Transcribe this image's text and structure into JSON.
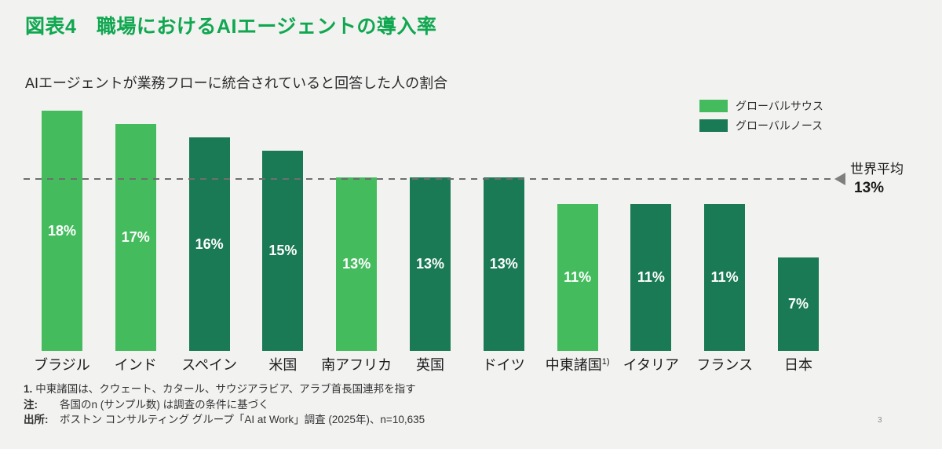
{
  "page": {
    "background_color": "#F2F2F1",
    "page_number": "3"
  },
  "title": {
    "text": "図表4　職場におけるAIエージェントの導入率",
    "color": "#10A750"
  },
  "subtitle": "AIエージェントが業務フローに統合されていると回答した人の割合",
  "legend": {
    "position": "top-right",
    "items": [
      {
        "label": "グローバルサウス",
        "color": "#44BC5E"
      },
      {
        "label": "グローバルノース",
        "color": "#1A7A55"
      }
    ]
  },
  "chart_data": {
    "type": "bar",
    "title": "職場におけるAIエージェントの導入率",
    "xlabel": "",
    "ylabel": "",
    "ylim": [
      0,
      20
    ],
    "grid": false,
    "legend_position": "top-right",
    "categories": [
      "ブラジル",
      "インド",
      "スペイン",
      "米国",
      "南アフリカ",
      "英国",
      "ドイツ",
      "中東諸国",
      "イタリア",
      "フランス",
      "日本"
    ],
    "values": [
      18,
      17,
      16,
      15,
      13,
      13,
      13,
      11,
      11,
      11,
      7
    ],
    "series": [
      {
        "name": "グローバルサウス",
        "color": "#44BC5E"
      },
      {
        "name": "グローバルノース",
        "color": "#1A7A55"
      }
    ],
    "bars": [
      {
        "category": "ブラジル",
        "sup": "",
        "value": 18,
        "label": "18%",
        "series": "グローバルサウス"
      },
      {
        "category": "インド",
        "sup": "",
        "value": 17,
        "label": "17%",
        "series": "グローバルサウス"
      },
      {
        "category": "スペイン",
        "sup": "",
        "value": 16,
        "label": "16%",
        "series": "グローバルノース"
      },
      {
        "category": "米国",
        "sup": "",
        "value": 15,
        "label": "15%",
        "series": "グローバルノース"
      },
      {
        "category": "南アフリカ",
        "sup": "",
        "value": 13,
        "label": "13%",
        "series": "グローバルサウス"
      },
      {
        "category": "英国",
        "sup": "",
        "value": 13,
        "label": "13%",
        "series": "グローバルノース"
      },
      {
        "category": "ドイツ",
        "sup": "",
        "value": 13,
        "label": "13%",
        "series": "グローバルノース"
      },
      {
        "category": "中東諸国",
        "sup": "1)",
        "value": 11,
        "label": "11%",
        "series": "グローバルサウス"
      },
      {
        "category": "イタリア",
        "sup": "",
        "value": 11,
        "label": "11%",
        "series": "グローバルノース"
      },
      {
        "category": "フランス",
        "sup": "",
        "value": 11,
        "label": "11%",
        "series": "グローバルノース"
      },
      {
        "category": "日本",
        "sup": "",
        "value": 7,
        "label": "7%",
        "series": "グローバルノース"
      }
    ],
    "average": {
      "label": "世界平均",
      "value": 13,
      "value_label": "13%",
      "line_color": "#6E6E6E"
    }
  },
  "footnotes": {
    "fn1_label": "1.",
    "fn1_text": "中東諸国は、クウェート、カタール、サウジアラビア、アラブ首長国連邦を指す",
    "note_label": "注:",
    "note_text": "各国のn (サンプル数) は調査の条件に基づく",
    "source_label": "出所:",
    "source_text": "ボストン コンサルティング グループ「AI at Work」調査 (2025年)、n=10,635"
  }
}
